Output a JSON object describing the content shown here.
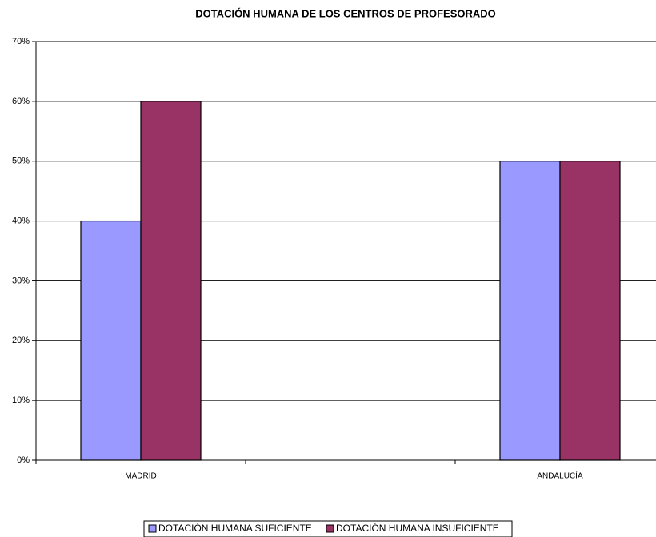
{
  "chart_data": {
    "type": "bar",
    "title": "DOTACIÓN HUMANA DE LOS CENTROS DE PROFESORADO",
    "categories": [
      "MADRID",
      null,
      "ANDALUCÍA"
    ],
    "series": [
      {
        "name": "DOTACIÓN HUMANA SUFICIENTE",
        "color": "#9999ff",
        "values": [
          40,
          null,
          50
        ]
      },
      {
        "name": "DOTACIÓN HUMANA INSUFICIENTE",
        "color": "#993366",
        "values": [
          60,
          null,
          50
        ]
      }
    ],
    "ylim": [
      0,
      70
    ],
    "yticks": [
      {
        "value": 0,
        "label": "0%"
      },
      {
        "value": 10,
        "label": "10%"
      },
      {
        "value": 20,
        "label": "20%"
      },
      {
        "value": 30,
        "label": "30%"
      },
      {
        "value": 40,
        "label": "40%"
      },
      {
        "value": 50,
        "label": "50%"
      },
      {
        "value": 60,
        "label": "60%"
      },
      {
        "value": 70,
        "label": "70%"
      }
    ],
    "grid": true,
    "legend": "bottom"
  }
}
